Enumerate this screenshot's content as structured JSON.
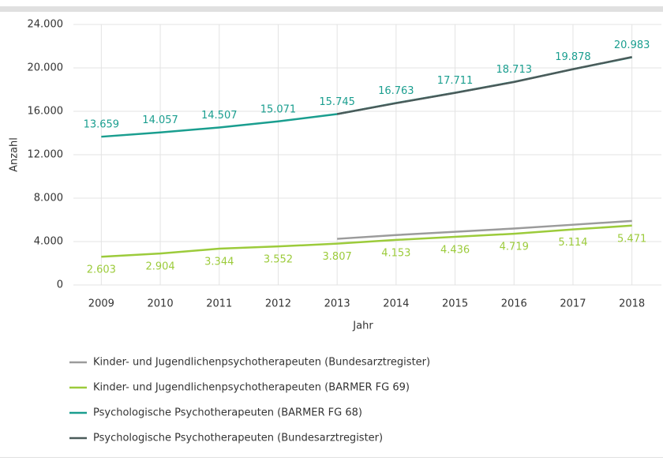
{
  "chart_data": {
    "type": "line",
    "x_label": "Jahr",
    "y_label": "Anzahl",
    "categories": [
      "2009",
      "2010",
      "2011",
      "2012",
      "2013",
      "2014",
      "2015",
      "2016",
      "2017",
      "2018"
    ],
    "ylim": [
      0,
      24000
    ],
    "yticks": [
      0,
      {
        "value": 4000,
        "label": "4.000"
      },
      {
        "value": 8000,
        "label": "8.000"
      },
      {
        "value": 12000,
        "label": "12.000"
      },
      {
        "value": 16000,
        "label": "16.000"
      },
      {
        "value": 20000,
        "label": "20.000"
      },
      {
        "value": 24000,
        "label": "24.000"
      }
    ],
    "grid": true,
    "series": [
      {
        "name": "Kinder- und Jugendlichenpsychotherapeuten (Bundesarztregister)",
        "color": "#9b9b9b",
        "values": [
          null,
          null,
          null,
          null,
          4250,
          4600,
          4900,
          5200,
          5550,
          5900
        ]
      },
      {
        "name": "Kinder- und Jugendlichenpsychotherapeuten (BARMER FG 69)",
        "color": "#9ccb3b",
        "values": [
          2603,
          2904,
          3344,
          3552,
          3807,
          4153,
          4436,
          4719,
          5114,
          5471
        ],
        "value_labels": [
          "2.603",
          "2.904",
          "3.344",
          "3.552",
          "3.807",
          "4.153",
          "4.436",
          "4.719",
          "5.114",
          "5.471"
        ]
      },
      {
        "name": "Psychologische Psychotherapeuten (BARMER FG 68)",
        "color": "#1a9e8f",
        "values": [
          13659,
          14057,
          14507,
          15071,
          15745,
          16763,
          17711,
          18713,
          19878,
          20983
        ],
        "value_labels": [
          "13.659",
          "14.057",
          "14.507",
          "15.071",
          "15.745",
          "16.763",
          "17.711",
          "18.713",
          "19.878",
          "20.983"
        ]
      },
      {
        "name": "Psychologische Psychotherapeuten (Bundesarztregister)",
        "color": "#4b5b5a",
        "values": [
          null,
          null,
          null,
          null,
          15745,
          16750,
          17700,
          18700,
          19880,
          21000
        ]
      }
    ]
  }
}
